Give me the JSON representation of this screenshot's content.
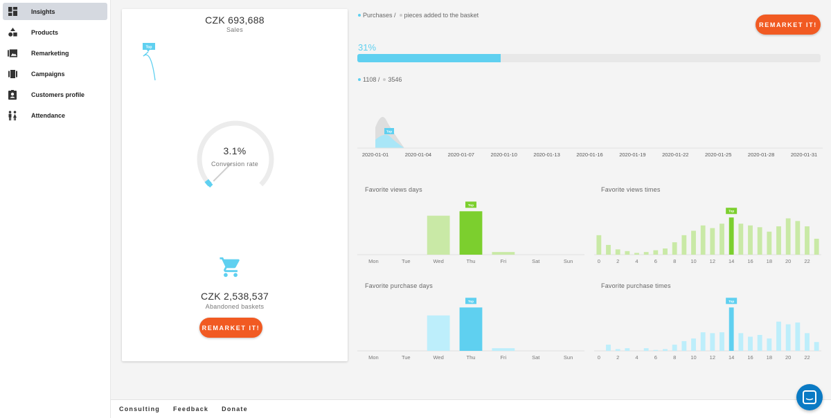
{
  "sidebar": {
    "items": [
      {
        "label": "Insights",
        "icon": "dashboard-icon",
        "active": true
      },
      {
        "label": "Products",
        "icon": "shapes-icon",
        "active": false
      },
      {
        "label": "Remarketing",
        "icon": "image-gallery-icon",
        "active": false
      },
      {
        "label": "Campaigns",
        "icon": "film-strip-icon",
        "active": false
      },
      {
        "label": "Customers profile",
        "icon": "contact-card-icon",
        "active": false
      },
      {
        "label": "Attendance",
        "icon": "people-icon",
        "active": false
      }
    ]
  },
  "sales": {
    "value": "CZK 693,688",
    "label": "Sales",
    "top_badge": "Top"
  },
  "conversion": {
    "value": "3.1%",
    "label": "Conversion rate",
    "percent": 3.1
  },
  "abandoned": {
    "value": "CZK 2,538,537",
    "label": "Abandoned baskets",
    "button": "REMARKET IT!",
    "icon": "shopping-cart-icon"
  },
  "purchases": {
    "legend_a": "Purchases /",
    "legend_b": "pieces added to the basket",
    "percent_label": "31%",
    "percent": 31,
    "count_a": "1108 /",
    "count_b": "3546",
    "button": "REMARKET IT!"
  },
  "colors": {
    "accent_blue": "#5fd0f0",
    "accent_green": "#7ccf2e",
    "orange": "#f15a22",
    "dot_grey": "#cccccc"
  },
  "timeline": {
    "dates": [
      "2020-01-01",
      "2020-01-04",
      "2020-01-07",
      "2020-01-10",
      "2020-01-13",
      "2020-01-16",
      "2020-01-19",
      "2020-01-22",
      "2020-01-25",
      "2020-01-28",
      "2020-01-31"
    ],
    "top_badge": "Top"
  },
  "chart_data": [
    {
      "type": "bar",
      "title": "Favorite views days",
      "categories": [
        "Mon",
        "Tue",
        "Wed",
        "Thu",
        "Fri",
        "Sat",
        "Sun"
      ],
      "values": [
        0,
        0,
        44,
        49,
        3,
        0,
        0
      ],
      "top_badge": "Top"
    },
    {
      "type": "bar",
      "title": "Favorite views times",
      "categories": [
        "0",
        "1",
        "2",
        "3",
        "4",
        "5",
        "6",
        "7",
        "8",
        "9",
        "10",
        "11",
        "12",
        "13",
        "14",
        "15",
        "16",
        "17",
        "18",
        "19",
        "20",
        "21",
        "22",
        "23"
      ],
      "tick_labels": [
        "0",
        "2",
        "4",
        "6",
        "8",
        "10",
        "12",
        "14",
        "16",
        "18",
        "20",
        "22"
      ],
      "values": [
        22,
        11,
        6,
        4,
        2,
        3,
        5,
        7,
        14,
        22,
        27,
        33,
        30,
        35,
        42,
        35,
        33,
        31,
        26,
        32,
        41,
        38,
        32,
        18
      ],
      "top_badge": "Top"
    },
    {
      "type": "bar",
      "title": "Favorite purchase days",
      "categories": [
        "Mon",
        "Tue",
        "Wed",
        "Thu",
        "Fri",
        "Sat",
        "Sun"
      ],
      "values": [
        0,
        0,
        40,
        49,
        3,
        0,
        0
      ],
      "top_badge": "Top"
    },
    {
      "type": "bar",
      "title": "Favorite purchase times",
      "categories": [
        "0",
        "1",
        "2",
        "3",
        "4",
        "5",
        "6",
        "7",
        "8",
        "9",
        "10",
        "11",
        "12",
        "13",
        "14",
        "15",
        "16",
        "17",
        "18",
        "19",
        "20",
        "21",
        "22",
        "23"
      ],
      "tick_labels": [
        "0",
        "2",
        "4",
        "6",
        "8",
        "10",
        "12",
        "14",
        "16",
        "18",
        "20",
        "22"
      ],
      "values": [
        0,
        7,
        2,
        3,
        0,
        3,
        1,
        2,
        7,
        11,
        14,
        21,
        20,
        21,
        49,
        20,
        16,
        18,
        14,
        33,
        30,
        32,
        20,
        10
      ],
      "top_badge": "Top"
    }
  ],
  "footer": {
    "links": [
      "Consulting",
      "Feedback",
      "Donate"
    ]
  },
  "chat": {
    "icon": "chat-icon"
  }
}
